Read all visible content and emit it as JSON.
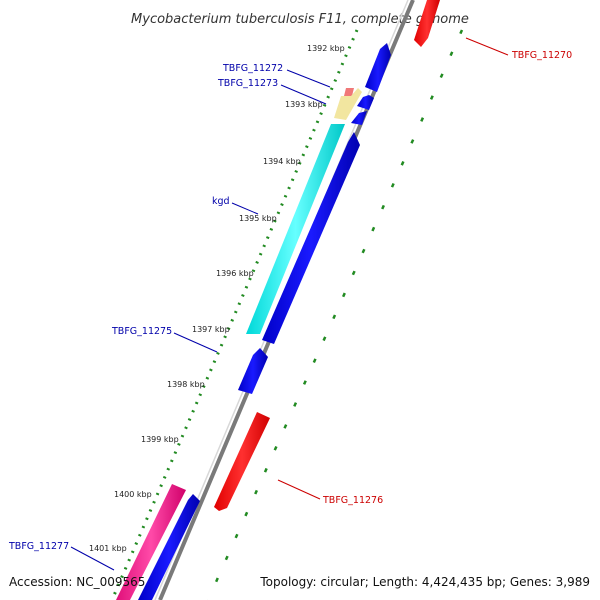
{
  "title": "Mycobacterium tuberculosis F11, complete genome",
  "footer": {
    "accession": "Accession: NC_009565",
    "stats": "Topology: circular; Length: 4,424,435 bp; Genes: 3,989"
  },
  "ticks": [
    "1392 kbp",
    "1393 kbp",
    "1394 kbp",
    "1395 kbp",
    "1396 kbp",
    "1397 kbp",
    "1398 kbp",
    "1399 kbp",
    "1400 kbp",
    "1401 kbp"
  ],
  "genes": {
    "tbfg_11272": "TBFG_11272",
    "tbfg_11273": "TBFG_11273",
    "kgd": "kgd",
    "tbfg_11275": "TBFG_11275",
    "tbfg_11277": "TBFG_11277",
    "tbfg_11270": "TBFG_11270",
    "tbfg_11276": "TBFG_11276"
  },
  "colors": {
    "backbone": "#808080",
    "forward_cds": "#0000ee",
    "reverse_cds": "#ff0000",
    "kgd": "#00eeee",
    "magenta_gene": "#ff1493",
    "tick_green": "#228b22",
    "label_blue": "#0000aa",
    "label_red": "#cc0000"
  }
}
